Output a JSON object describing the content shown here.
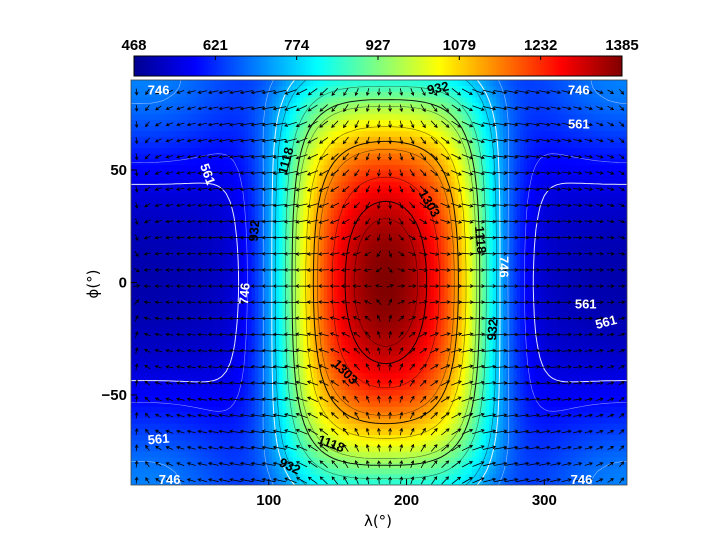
{
  "chart_data": {
    "type": "heatmap",
    "title": "",
    "xlabel": "λ(°)",
    "ylabel": "ϕ(°)",
    "xlim": [
      0,
      360
    ],
    "ylim": [
      -90,
      90
    ],
    "x_ticks": [
      "100",
      "200",
      "300"
    ],
    "x_tick_values": [
      100,
      200,
      300
    ],
    "y_ticks": [
      "50",
      "0",
      "−50"
    ],
    "y_tick_values": [
      50,
      0,
      -50
    ],
    "colorbar": {
      "ticks": [
        "468",
        "621",
        "774",
        "927",
        "1079",
        "1232",
        "1385"
      ],
      "min": 468,
      "max": 1385,
      "colormap": "jet",
      "placement": "top"
    },
    "field": {
      "peak_value": 1385,
      "peak_lon": 185,
      "peak_lat": 0,
      "min_value": 468
    },
    "contours": {
      "levels": [
        561,
        746,
        932,
        1118,
        1303
      ],
      "labels": [
        {
          "text": "746",
          "lon": 20,
          "lat": 85,
          "color": "white",
          "rot": 0
        },
        {
          "text": "932",
          "lon": 223,
          "lat": 86,
          "color": "black",
          "rot": -12
        },
        {
          "text": "746",
          "lon": 325,
          "lat": 85,
          "color": "white",
          "rot": 0
        },
        {
          "text": "561",
          "lon": 325,
          "lat": 70,
          "color": "white",
          "rot": 0
        },
        {
          "text": "561",
          "lon": 55,
          "lat": 48,
          "color": "white",
          "rot": 70
        },
        {
          "text": "1118",
          "lon": 113,
          "lat": 54,
          "color": "black",
          "rot": -75
        },
        {
          "text": "1303",
          "lon": 216,
          "lat": 35,
          "color": "black",
          "rot": 60
        },
        {
          "text": "1118",
          "lon": 253,
          "lat": 19,
          "color": "black",
          "rot": 85
        },
        {
          "text": "932",
          "lon": 90,
          "lat": 23,
          "color": "black",
          "rot": -85
        },
        {
          "text": "746",
          "lon": 270,
          "lat": 7,
          "color": "white",
          "rot": 90
        },
        {
          "text": "746",
          "lon": 83,
          "lat": -5,
          "color": "white",
          "rot": -85
        },
        {
          "text": "932",
          "lon": 263,
          "lat": -21,
          "color": "black",
          "rot": -85
        },
        {
          "text": "561",
          "lon": 330,
          "lat": -10,
          "color": "white",
          "rot": 0
        },
        {
          "text": "561",
          "lon": 345,
          "lat": -18,
          "color": "white",
          "rot": -15
        },
        {
          "text": "1303",
          "lon": 155,
          "lat": -40,
          "color": "black",
          "rot": 45
        },
        {
          "text": "1118",
          "lon": 145,
          "lat": -72,
          "color": "black",
          "rot": 20
        },
        {
          "text": "561",
          "lon": 20,
          "lat": -70,
          "color": "white",
          "rot": -5
        },
        {
          "text": "932",
          "lon": 115,
          "lat": -82,
          "color": "black",
          "rot": 25
        },
        {
          "text": "746",
          "lon": 28,
          "lat": -88,
          "color": "white",
          "rot": 0
        },
        {
          "text": "746",
          "lon": 327,
          "lat": -88,
          "color": "white",
          "rot": 0
        }
      ]
    },
    "vectors": {
      "shown": true,
      "pattern": "divergent outflow from the hot spot, convergence on the night side",
      "color": "black"
    },
    "grid": false
  }
}
